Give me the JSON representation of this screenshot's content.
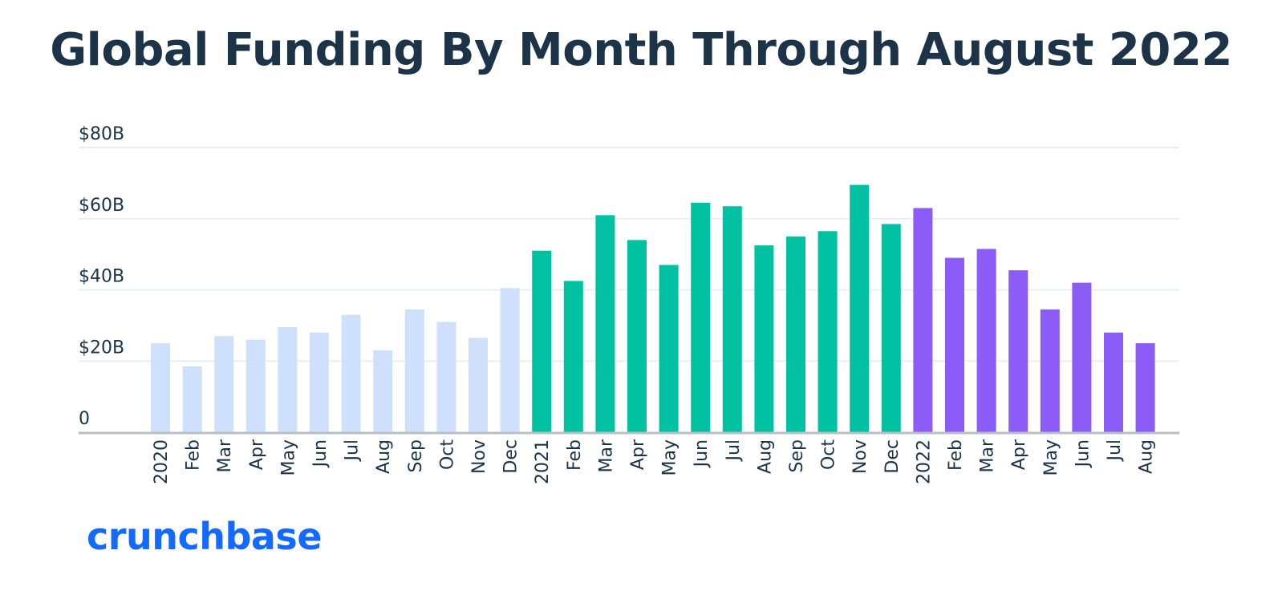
{
  "chart_data": {
    "type": "bar",
    "title": "Global Funding By Month Through August 2022",
    "xlabel": "",
    "ylabel": "",
    "ylim": [
      0,
      80
    ],
    "y_ticks": [
      {
        "value": 0,
        "label": "0"
      },
      {
        "value": 20,
        "label": "$20B"
      },
      {
        "value": 40,
        "label": "$40B"
      },
      {
        "value": 60,
        "label": "$60B"
      },
      {
        "value": 80,
        "label": "$80B"
      }
    ],
    "grid": true,
    "categories": [
      "2020",
      "Feb",
      "Mar",
      "Apr",
      "May",
      "Jun",
      "Jul",
      "Aug",
      "Sep",
      "Oct",
      "Nov",
      "Dec",
      "2021",
      "Feb",
      "Mar",
      "Apr",
      "May",
      "Jun",
      "Jul",
      "Aug",
      "Sep",
      "Oct",
      "Nov",
      "Dec",
      "2022",
      "Feb",
      "Mar",
      "Apr",
      "May",
      "Jun",
      "Jul",
      "Aug"
    ],
    "values": [
      25,
      18.5,
      27,
      26,
      29.5,
      28,
      33,
      23,
      34.5,
      31,
      26.5,
      40.5,
      51,
      42.5,
      61,
      54,
      47,
      64.5,
      63.5,
      52.5,
      55,
      56.5,
      69.5,
      58.5,
      63,
      49,
      51.5,
      45.5,
      34.5,
      42,
      28,
      25
    ],
    "bar_colors": [
      "#cfe0fc",
      "#cfe0fc",
      "#cfe0fc",
      "#cfe0fc",
      "#cfe0fc",
      "#cfe0fc",
      "#cfe0fc",
      "#cfe0fc",
      "#cfe0fc",
      "#cfe0fc",
      "#cfe0fc",
      "#cfe0fc",
      "#00c2a3",
      "#00c2a3",
      "#00c2a3",
      "#00c2a3",
      "#00c2a3",
      "#00c2a3",
      "#00c2a3",
      "#00c2a3",
      "#00c2a3",
      "#00c2a3",
      "#00c2a3",
      "#00c2a3",
      "#8b5cf6",
      "#8b5cf6",
      "#8b5cf6",
      "#8b5cf6",
      "#8b5cf6",
      "#8b5cf6",
      "#8b5cf6",
      "#8b5cf6"
    ]
  },
  "colors": {
    "text": "#1d3448",
    "gridline": "#ebeef1",
    "baseline": "#b8bfc6",
    "brand": "#146aff"
  },
  "logo": {
    "text": "crunchbase"
  }
}
